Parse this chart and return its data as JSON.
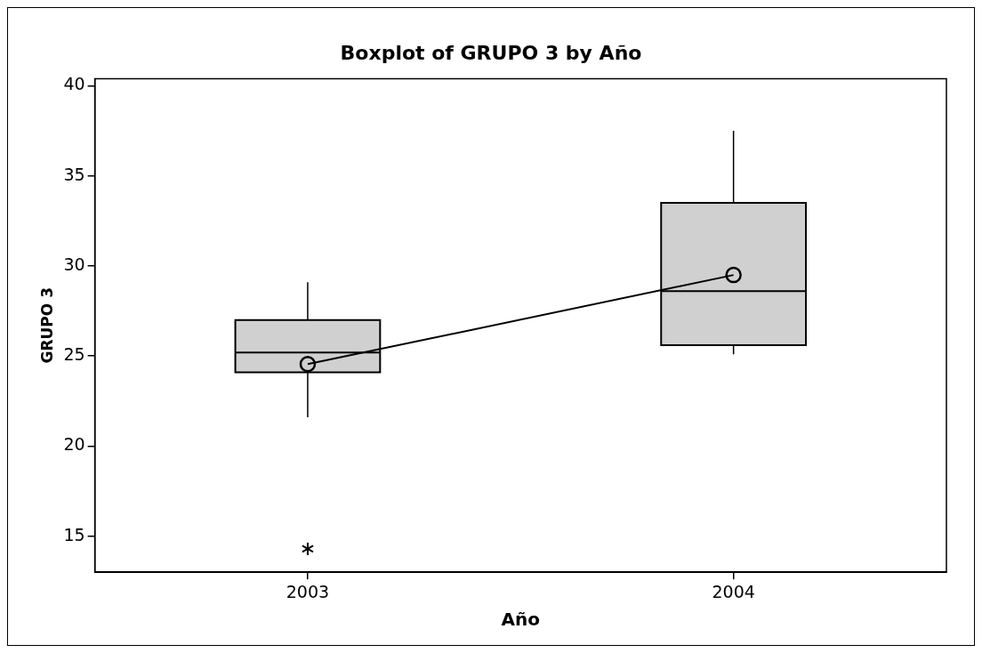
{
  "chart_data": {
    "type": "box",
    "title": "Boxplot of GRUPO 3 by Año",
    "xlabel": "Año",
    "ylabel": "GRUPO 3",
    "categories": [
      "2003",
      "2004"
    ],
    "series": [
      {
        "type": "box",
        "color": "#d0d0d0",
        "boxes": [
          {
            "low": 21.6,
            "q1": 24.1,
            "median": 25.2,
            "q3": 27.0,
            "high": 29.1,
            "outliers": [
              14.3
            ]
          },
          {
            "low": 25.1,
            "q1": 25.6,
            "median": 28.6,
            "q3": 33.5,
            "high": 37.5
          }
        ]
      },
      {
        "type": "line",
        "color": "#000000",
        "values": [
          24.55,
          29.5
        ],
        "marker": "circle"
      }
    ],
    "ylim": [
      13,
      40.4
    ],
    "yticks": [
      15,
      20,
      25,
      30,
      35,
      40
    ]
  }
}
